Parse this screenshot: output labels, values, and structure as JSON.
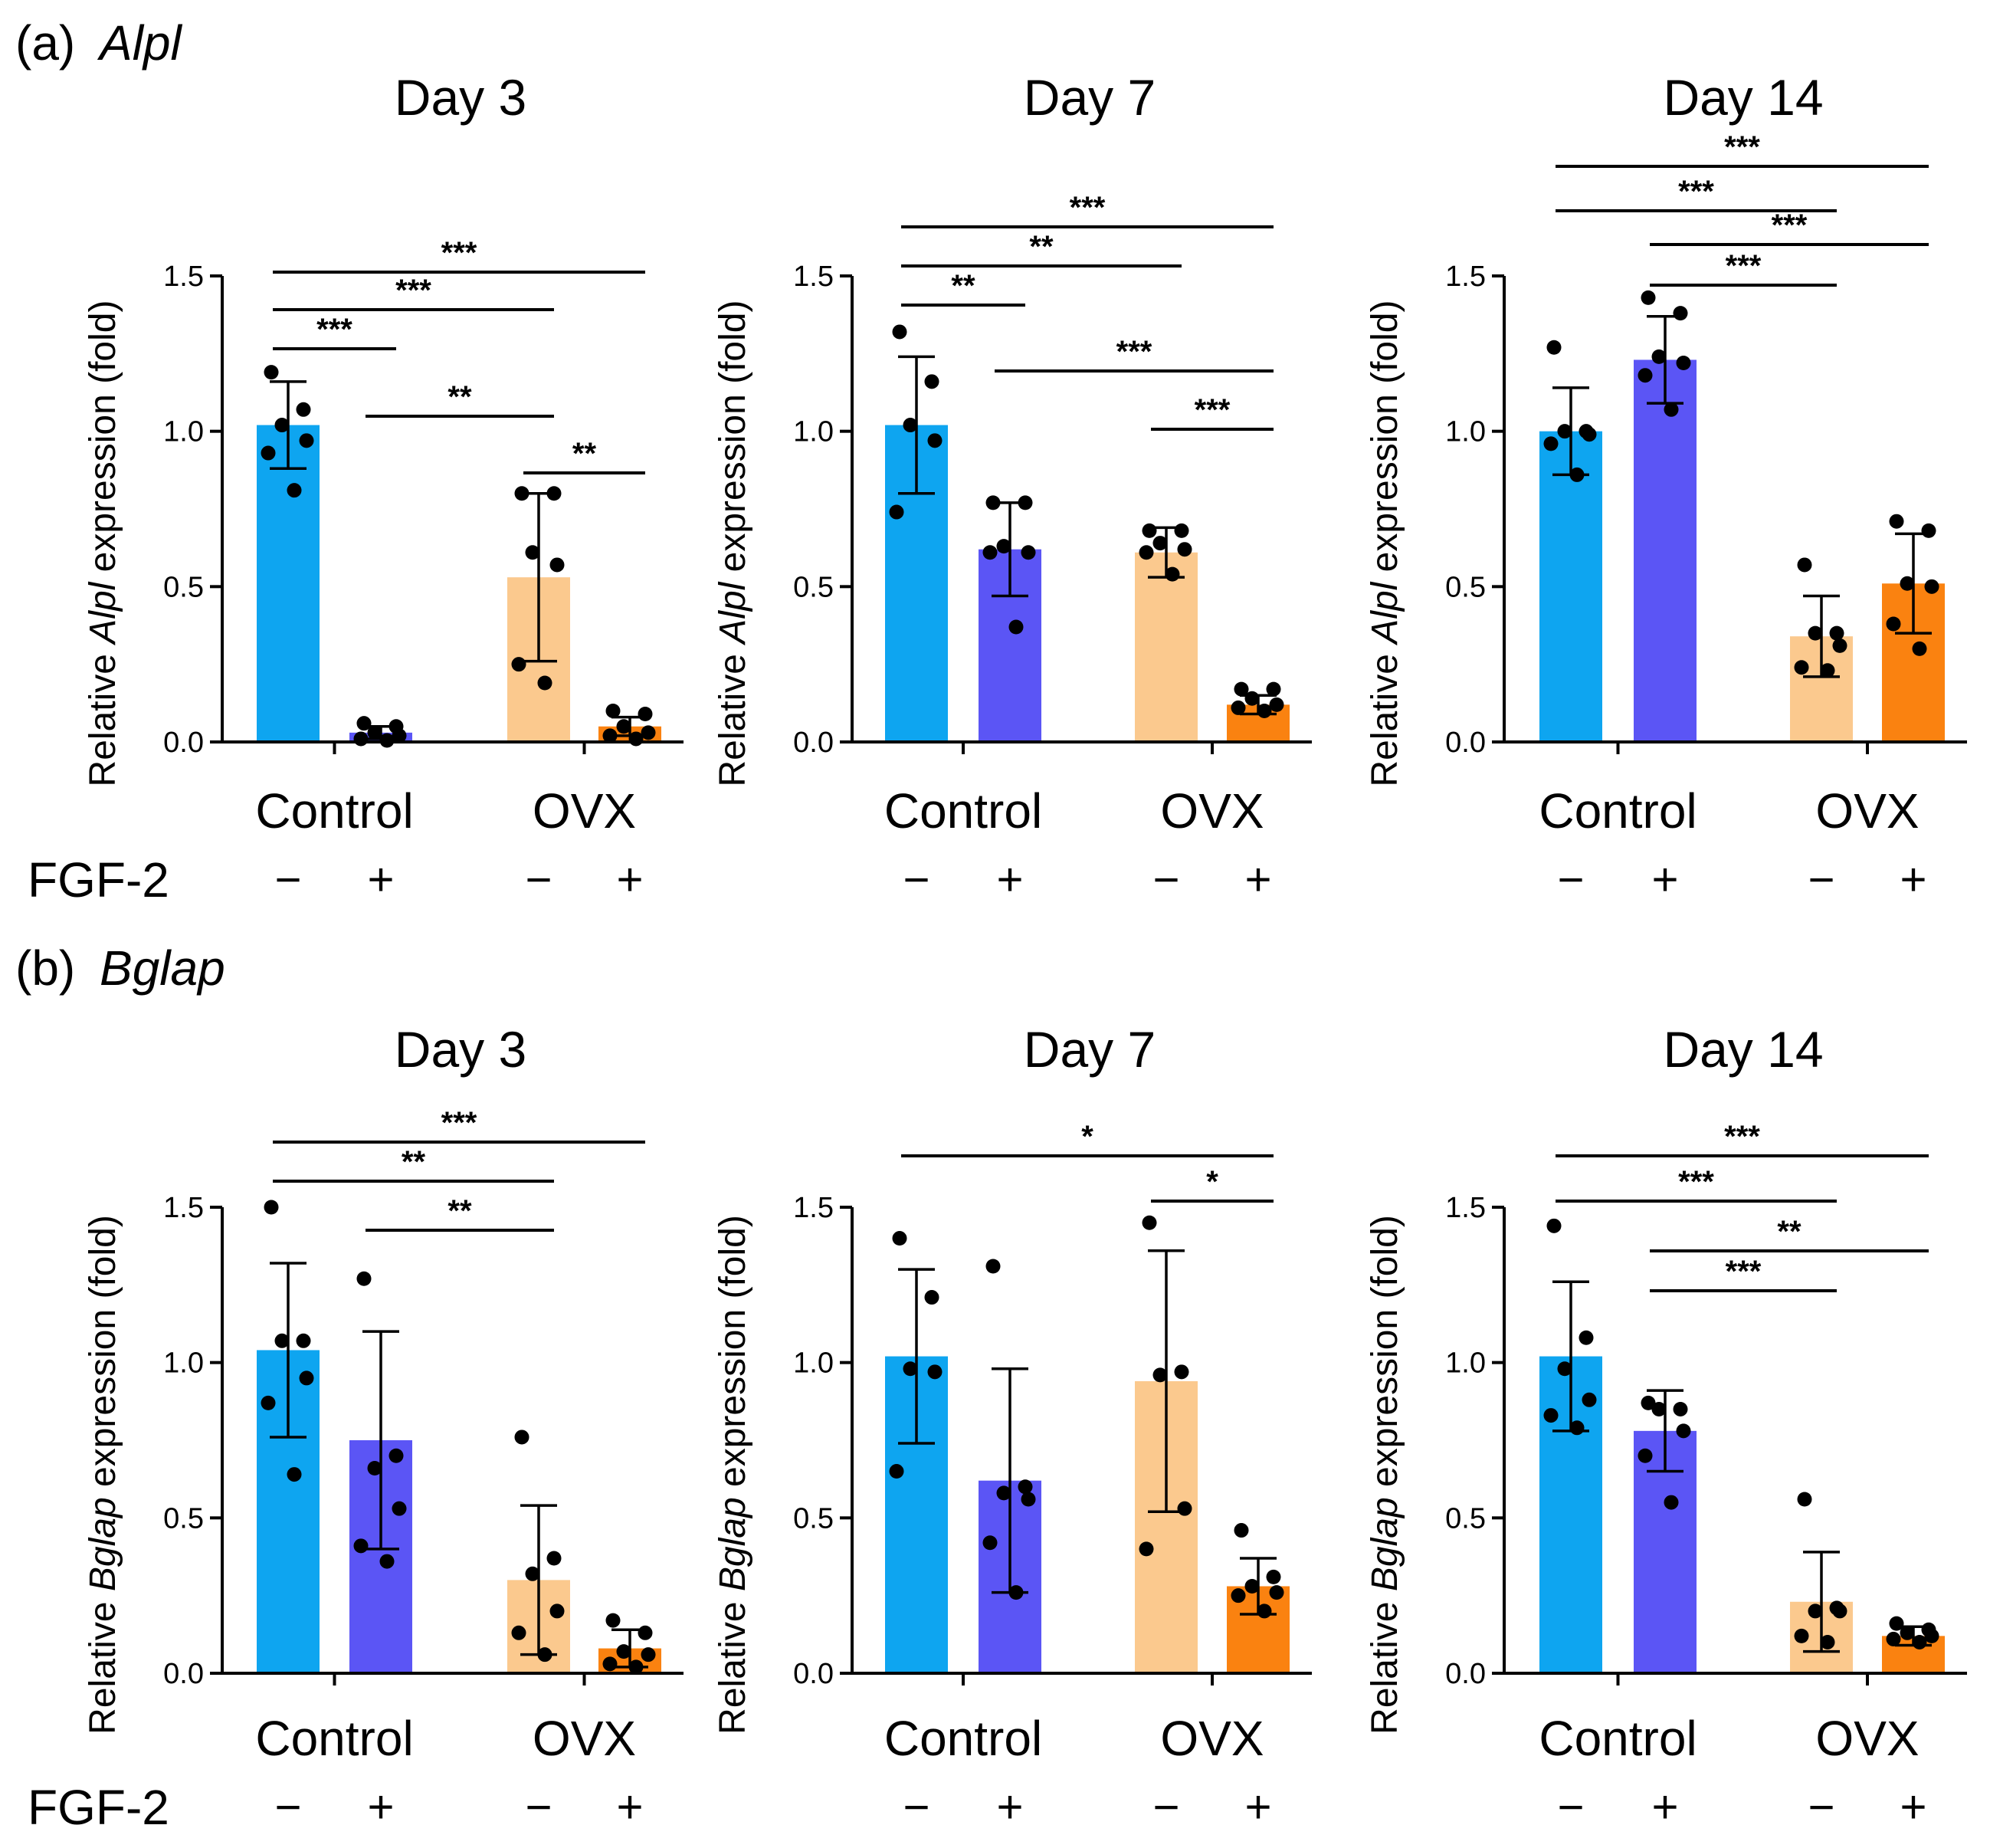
{
  "colors": {
    "control_minus": "#0EA5F0",
    "control_plus": "#5B55F5",
    "ovx_minus": "#FBC98E",
    "ovx_plus": "#FA8210"
  },
  "row_label": "FGF-2",
  "group_labels": [
    "Control",
    "OVX"
  ],
  "fgf_signs": [
    "−",
    "+",
    "−",
    "+"
  ],
  "sections": [
    {
      "letter": "(a)",
      "gene": "Alpl"
    },
    {
      "letter": "(b)",
      "gene": "Bglap"
    }
  ],
  "y_axis_title": {
    "prefix": "Relative ",
    "suffix": " expression (fold)"
  },
  "chart_data": [
    {
      "type": "bar",
      "section": 0,
      "title": "Day 3",
      "gene": "Alpl",
      "ylim": [
        0,
        1.5
      ],
      "yticks": [
        "0.0",
        "0.5",
        "1.0",
        "1.5"
      ],
      "categories": [
        "Control −",
        "Control +",
        "OVX −",
        "OVX +"
      ],
      "values": [
        1.02,
        0.03,
        0.53,
        0.05
      ],
      "sd": [
        0.14,
        0.02,
        0.27,
        0.03
      ],
      "points": [
        [
          1.19,
          1.07,
          1.02,
          0.97,
          0.93,
          0.81
        ],
        [
          0.06,
          0.05,
          0.03,
          0.02,
          0.01,
          0.005
        ],
        [
          0.8,
          0.8,
          0.61,
          0.57,
          0.25,
          0.19
        ],
        [
          0.1,
          0.09,
          0.05,
          0.03,
          0.02,
          0.01
        ]
      ],
      "comparisons": [
        {
          "from": 0,
          "to": 3,
          "label": "***"
        },
        {
          "from": 0,
          "to": 2,
          "label": "***"
        },
        {
          "from": 0,
          "to": 1,
          "label": "***"
        },
        {
          "from": 1,
          "to": 2,
          "label": "**"
        },
        {
          "from": 2,
          "to": 3,
          "label": "**"
        }
      ]
    },
    {
      "type": "bar",
      "section": 0,
      "title": "Day 7",
      "gene": "Alpl",
      "ylim": [
        0,
        1.5
      ],
      "yticks": [
        "0.0",
        "0.5",
        "1.0",
        "1.5"
      ],
      "categories": [
        "Control −",
        "Control +",
        "OVX −",
        "OVX +"
      ],
      "values": [
        1.02,
        0.62,
        0.61,
        0.12
      ],
      "sd": [
        0.22,
        0.15,
        0.08,
        0.03
      ],
      "points": [
        [
          1.32,
          1.16,
          1.02,
          0.97,
          0.74
        ],
        [
          0.77,
          0.77,
          0.63,
          0.61,
          0.61,
          0.37
        ],
        [
          0.68,
          0.68,
          0.64,
          0.62,
          0.61,
          0.54
        ],
        [
          0.17,
          0.17,
          0.14,
          0.12,
          0.11,
          0.1
        ]
      ],
      "comparisons": [
        {
          "from": 0,
          "to": 3,
          "label": "***"
        },
        {
          "from": 0,
          "to": 2,
          "label": "**"
        },
        {
          "from": 0,
          "to": 1,
          "label": "**"
        },
        {
          "from": 1,
          "to": 3,
          "label": "***"
        },
        {
          "from": 2,
          "to": 3,
          "label": "***"
        }
      ]
    },
    {
      "type": "bar",
      "section": 0,
      "title": "Day 14",
      "gene": "Alpl",
      "ylim": [
        0,
        1.5
      ],
      "yticks": [
        "0.0",
        "0.5",
        "1.0",
        "1.5"
      ],
      "categories": [
        "Control −",
        "Control +",
        "OVX −",
        "OVX +"
      ],
      "values": [
        1.0,
        1.23,
        0.34,
        0.51
      ],
      "sd": [
        0.14,
        0.14,
        0.13,
        0.16
      ],
      "points": [
        [
          1.27,
          1.0,
          1.0,
          0.99,
          0.96,
          0.86
        ],
        [
          1.43,
          1.38,
          1.24,
          1.22,
          1.18,
          1.07
        ],
        [
          0.57,
          0.35,
          0.35,
          0.31,
          0.24,
          0.23
        ],
        [
          0.71,
          0.68,
          0.51,
          0.5,
          0.38,
          0.3
        ]
      ],
      "comparisons": [
        {
          "from": 0,
          "to": 3,
          "label": "***"
        },
        {
          "from": 0,
          "to": 2,
          "label": "***"
        },
        {
          "from": 1,
          "to": 3,
          "label": "***"
        },
        {
          "from": 1,
          "to": 2,
          "label": "***"
        }
      ]
    },
    {
      "type": "bar",
      "section": 1,
      "title": "Day 3",
      "gene": "Bglap",
      "ylim": [
        0,
        1.5
      ],
      "yticks": [
        "0.0",
        "0.5",
        "1.0",
        "1.5"
      ],
      "categories": [
        "Control −",
        "Control +",
        "OVX −",
        "OVX +"
      ],
      "values": [
        1.04,
        0.75,
        0.3,
        0.08
      ],
      "sd": [
        0.28,
        0.35,
        0.24,
        0.06
      ],
      "points": [
        [
          1.5,
          1.07,
          1.07,
          0.95,
          0.87,
          0.64
        ],
        [
          1.27,
          0.7,
          0.66,
          0.53,
          0.41,
          0.36
        ],
        [
          0.76,
          0.37,
          0.32,
          0.2,
          0.13,
          0.06
        ],
        [
          0.17,
          0.13,
          0.07,
          0.06,
          0.03,
          0.02
        ]
      ],
      "comparisons": [
        {
          "from": 0,
          "to": 3,
          "label": "***"
        },
        {
          "from": 0,
          "to": 2,
          "label": "**"
        },
        {
          "from": 1,
          "to": 2,
          "label": "**"
        }
      ]
    },
    {
      "type": "bar",
      "section": 1,
      "title": "Day 7",
      "gene": "Bglap",
      "ylim": [
        0,
        1.5
      ],
      "yticks": [
        "0.0",
        "0.5",
        "1.0",
        "1.5"
      ],
      "categories": [
        "Control −",
        "Control +",
        "OVX −",
        "OVX +"
      ],
      "values": [
        1.02,
        0.62,
        0.94,
        0.28
      ],
      "sd": [
        0.28,
        0.36,
        0.42,
        0.09
      ],
      "points": [
        [
          1.4,
          1.21,
          0.98,
          0.97,
          0.65
        ],
        [
          1.31,
          0.6,
          0.58,
          0.56,
          0.42,
          0.26
        ],
        [
          1.45,
          0.97,
          0.96,
          0.53,
          0.4
        ],
        [
          0.46,
          0.31,
          0.28,
          0.26,
          0.25,
          0.2
        ]
      ],
      "comparisons": [
        {
          "from": 0,
          "to": 3,
          "label": "*"
        },
        {
          "from": 2,
          "to": 3,
          "label": "*"
        }
      ]
    },
    {
      "type": "bar",
      "section": 1,
      "title": "Day 14",
      "gene": "Bglap",
      "ylim": [
        0,
        1.5
      ],
      "yticks": [
        "0.0",
        "0.5",
        "1.0",
        "1.5"
      ],
      "categories": [
        "Control −",
        "Control +",
        "OVX −",
        "OVX +"
      ],
      "values": [
        1.02,
        0.78,
        0.23,
        0.12
      ],
      "sd": [
        0.24,
        0.13,
        0.16,
        0.03
      ],
      "points": [
        [
          1.44,
          1.08,
          0.98,
          0.88,
          0.83,
          0.79
        ],
        [
          0.87,
          0.85,
          0.85,
          0.78,
          0.7,
          0.55
        ],
        [
          0.56,
          0.21,
          0.2,
          0.2,
          0.12,
          0.1
        ],
        [
          0.16,
          0.14,
          0.13,
          0.12,
          0.11,
          0.1
        ]
      ],
      "comparisons": [
        {
          "from": 0,
          "to": 3,
          "label": "***"
        },
        {
          "from": 0,
          "to": 2,
          "label": "***"
        },
        {
          "from": 1,
          "to": 3,
          "label": "**"
        },
        {
          "from": 1,
          "to": 2,
          "label": "***"
        }
      ]
    }
  ]
}
